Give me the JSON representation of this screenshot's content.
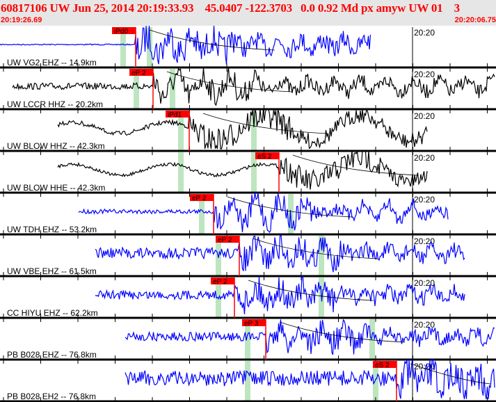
{
  "header": {
    "title": "60817106 UW Jun 25, 2014 20:19:33.93    45.0407 -122.3703   0.0 0.92 Md px amyw UW 01    3",
    "start_time": "20:19:26.69",
    "end_time": "20:20:06.75"
  },
  "time_marker": "20:20",
  "colors": {
    "pick": "#ff0000",
    "green_band": "#bde5bf",
    "blue": "#0000ff",
    "black": "#000000"
  },
  "traces": [
    {
      "label": "UW VG2 EHZ -- 14.9km",
      "pick": "iPd0"
    },
    {
      "label": "UW LCCR HHZ -- 20.2km",
      "pick": "eP 2"
    },
    {
      "label": "UW BLOW HHZ -- 42.3km",
      "pick": "iPd1"
    },
    {
      "label": "UW BLOW HHE -- 42.3km",
      "pick": "eS 2"
    },
    {
      "label": "UW TDH EHZ -- 53.2km",
      "pick": "eP 2"
    },
    {
      "label": "UW VBE EHZ -- 61.5km",
      "pick": "eP 2"
    },
    {
      "label": "CC HIYU EHZ -- 62.2km",
      "pick": "eP 2"
    },
    {
      "label": "PB B028 EHZ -- 76.8km",
      "pick": "eP 3"
    },
    {
      "label": "PB B028 EH2 -- 76.8km",
      "pick": "eS 2"
    }
  ]
}
